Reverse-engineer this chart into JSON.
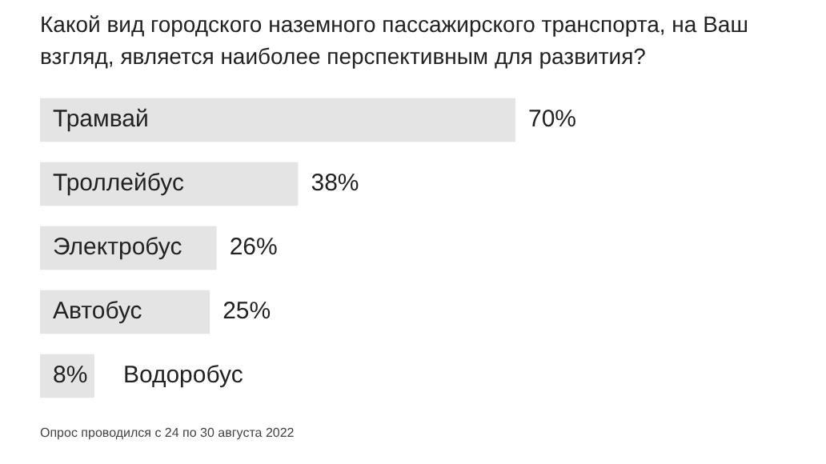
{
  "chart_data": {
    "type": "bar",
    "orientation": "horizontal",
    "title": "Какой вид городского наземного пассажирского транспорта, на Ваш взгляд, является наиболее перспективным для развития?",
    "categories": [
      "Трамвай",
      "Троллейбус",
      "Электробус",
      "Автобус",
      "Водоробус"
    ],
    "values": [
      70,
      38,
      26,
      25,
      8
    ],
    "color": "#e4e4e4",
    "value_labels": [
      "70%",
      "38%",
      "26%",
      "25%",
      "8%"
    ],
    "annotations": [
      "Опрос проводился с 24 по 30 августа 2022"
    ]
  }
}
